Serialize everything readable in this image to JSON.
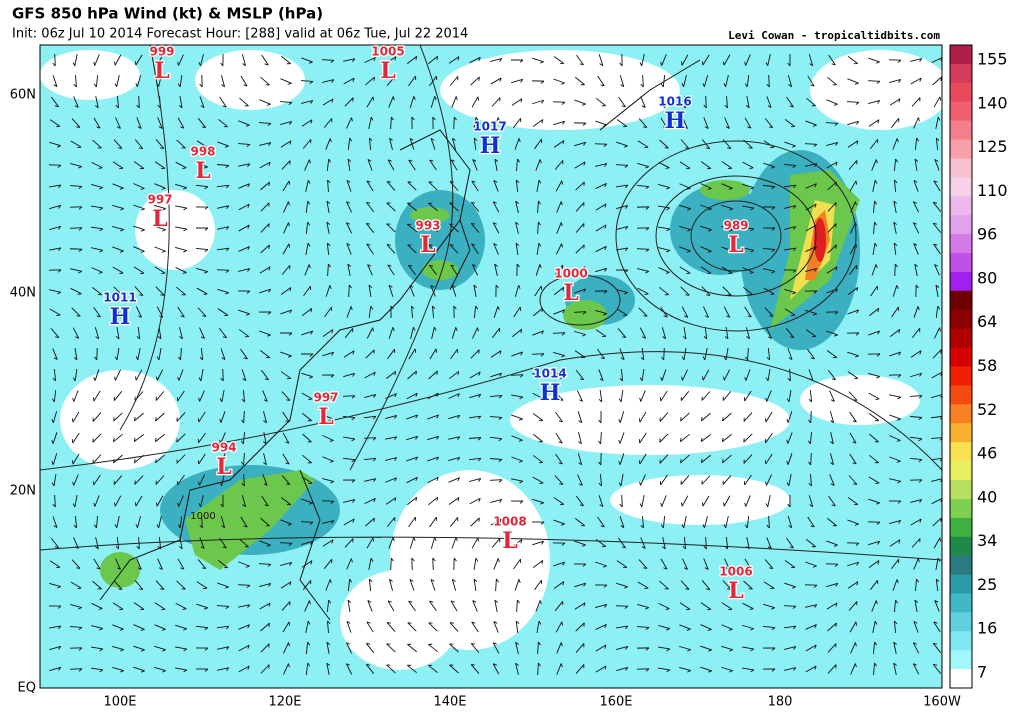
{
  "header": {
    "title": "GFS 850 hPa Wind (kt) & MSLP (hPa)",
    "subtitle": "Init: 06z Jul 10 2014 Forecast Hour: [288] valid at 06z Tue, Jul 22 2014",
    "credit": "Levi Cowan - tropicaltidbits.com"
  },
  "map": {
    "lat_labels": [
      "60N",
      "40N",
      "20N",
      "EQ"
    ],
    "lon_labels": [
      "100E",
      "120E",
      "140E",
      "160E",
      "180",
      "160W"
    ],
    "pressure_centers": [
      {
        "value": "999",
        "symbol": "L"
      },
      {
        "value": "1005",
        "symbol": "L"
      },
      {
        "value": "1016",
        "symbol": "H"
      },
      {
        "value": "1017",
        "symbol": "H"
      },
      {
        "value": "998",
        "symbol": "L"
      },
      {
        "value": "997",
        "symbol": "L"
      },
      {
        "value": "989",
        "symbol": "L"
      },
      {
        "value": "993",
        "symbol": "L"
      },
      {
        "value": "1000",
        "symbol": "L"
      },
      {
        "value": "1011",
        "symbol": "H"
      },
      {
        "value": "1014",
        "symbol": "H"
      },
      {
        "value": "997",
        "symbol": "L"
      },
      {
        "value": "994",
        "symbol": "L"
      },
      {
        "value": "1008",
        "symbol": "L"
      },
      {
        "value": "1006",
        "symbol": "L"
      }
    ],
    "contour_labels": [
      "1000"
    ]
  },
  "colorbar": {
    "labels": [
      "155",
      "140",
      "125",
      "110",
      "96",
      "80",
      "64",
      "58",
      "52",
      "46",
      "40",
      "34",
      "25",
      "16",
      "7"
    ],
    "colors": [
      "#b01e4a",
      "#d43a5a",
      "#e84a5a",
      "#f06070",
      "#f37f8a",
      "#f7a0aa",
      "#f7c0ce",
      "#f5d0e8",
      "#eeb8ee",
      "#e2a0ee",
      "#d47ae8",
      "#c050e8",
      "#a020f0",
      "#6e0000",
      "#8b0000",
      "#b00000",
      "#d80000",
      "#f02000",
      "#f54a10",
      "#f88020",
      "#f8b030",
      "#f8e050",
      "#e8f060",
      "#b8e060",
      "#80d050",
      "#40b040",
      "#208848",
      "#2a7a80",
      "#2a9ca8",
      "#40b8c8",
      "#60d0e0",
      "#80e8f0",
      "#a0f8f8",
      "#ffffff"
    ]
  }
}
